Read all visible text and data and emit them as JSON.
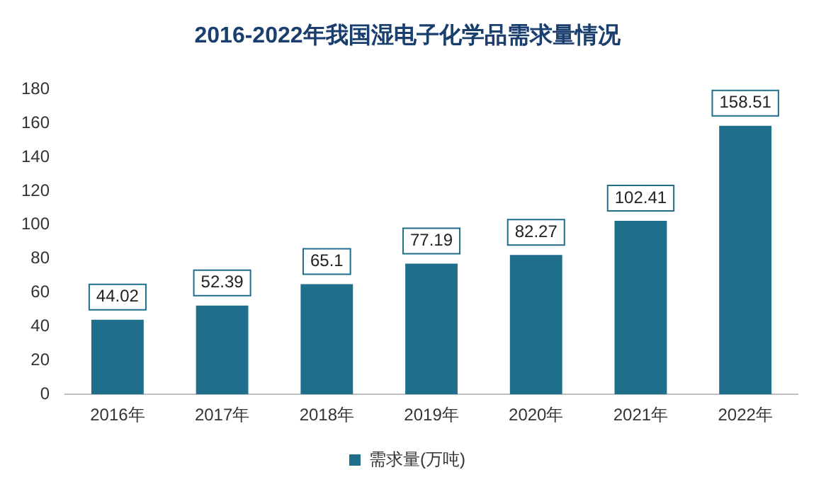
{
  "chart_data": {
    "type": "bar",
    "title": "2016-2022年我国湿电子化学品需求量情况",
    "categories": [
      "2016年",
      "2017年",
      "2018年",
      "2019年",
      "2020年",
      "2021年",
      "2022年"
    ],
    "series": [
      {
        "name": "需求量(万吨)",
        "color": "#1f6e8c",
        "values": [
          44.02,
          52.39,
          65.1,
          77.19,
          82.27,
          102.41,
          158.51
        ]
      }
    ],
    "ylim": [
      0,
      180
    ],
    "yticks": [
      0,
      20,
      40,
      60,
      80,
      100,
      120,
      140,
      160,
      180
    ],
    "data_labels": true,
    "legend": "bottom"
  }
}
